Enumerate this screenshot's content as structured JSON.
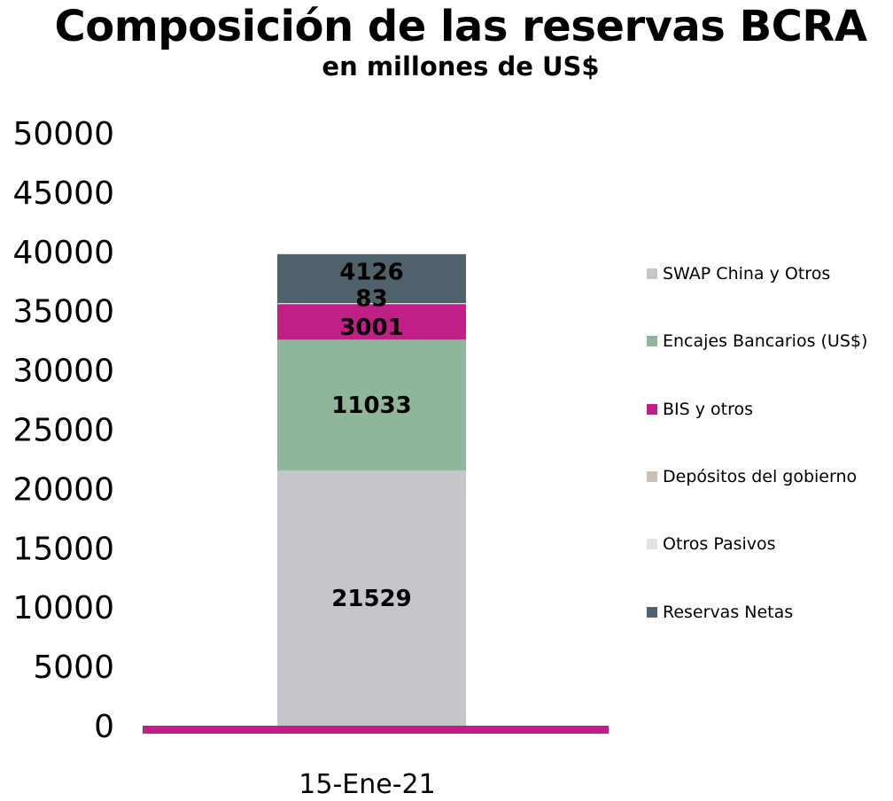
{
  "chart_data": {
    "type": "bar",
    "stacked": true,
    "title": "Composición de las reservas BCRA",
    "subtitle": "en millones de US$",
    "categories": [
      "15-Ene-21"
    ],
    "ylim": [
      0,
      50000
    ],
    "yticks": [
      0,
      5000,
      10000,
      15000,
      20000,
      25000,
      30000,
      35000,
      40000,
      45000,
      50000
    ],
    "grid": false,
    "legend_position": "right",
    "series": [
      {
        "name": "SWAP China y Otros",
        "values": [
          21529
        ],
        "color": "#c6c5cb",
        "label": "21529"
      },
      {
        "name": "Encajes Bancarios (US$)",
        "values": [
          11033
        ],
        "color": "#8fb59b",
        "label": "11033"
      },
      {
        "name": "BIS y otros",
        "values": [
          3001
        ],
        "color": "#bf1f86",
        "label": "3001"
      },
      {
        "name": "Depósitos del gobierno",
        "values": [
          0
        ],
        "color": "#cdbfb3",
        "label": ""
      },
      {
        "name": "Otros Pasivos",
        "values": [
          83
        ],
        "color": "#e2e2e2",
        "label": "83"
      },
      {
        "name": "Reservas Netas",
        "values": [
          4126
        ],
        "color": "#4f626b",
        "label": "4126"
      }
    ],
    "baseline_color": "#bf1f86"
  }
}
